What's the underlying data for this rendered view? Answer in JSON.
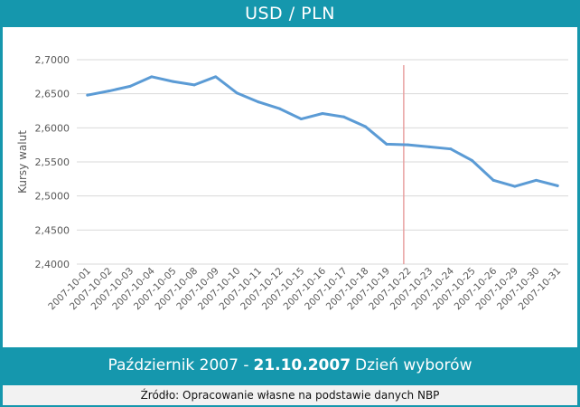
{
  "header": {
    "title": "USD / PLN"
  },
  "footer": {
    "caption_prefix": "Październik 2007 -",
    "caption_date": "21.10.2007",
    "caption_suffix": "Dzień wyborów",
    "source": "Źródło: Opracowanie własne na podstawie danych NBP"
  },
  "colors": {
    "frame": "#1597ad",
    "series": "#5b9bd5",
    "marker_line": "#e8a1a1",
    "grid": "#d9d9d9",
    "axis_text": "#595959"
  },
  "chart_data": {
    "type": "line",
    "title": "",
    "xlabel": "",
    "ylabel": "Kursy walut",
    "ylim": [
      2.4,
      2.7
    ],
    "yticks": [
      "2,4000",
      "2,4500",
      "2,5000",
      "2,5500",
      "2,6000",
      "2,6500",
      "2,7000"
    ],
    "grid": true,
    "legend": "none",
    "categories": [
      "2007-10-01",
      "2007-10-02",
      "2007-10-03",
      "2007-10-04",
      "2007-10-05",
      "2007-10-08",
      "2007-10-09",
      "2007-10-10",
      "2007-10-11",
      "2007-10-12",
      "2007-10-15",
      "2007-10-16",
      "2007-10-17",
      "2007-10-18",
      "2007-10-19",
      "2007-10-22",
      "2007-10-23",
      "2007-10-24",
      "2007-10-25",
      "2007-10-26",
      "2007-10-29",
      "2007-10-30",
      "2007-10-31"
    ],
    "series": [
      {
        "values": [
          2.648,
          2.654,
          2.661,
          2.675,
          2.668,
          2.663,
          2.675,
          2.651,
          2.638,
          2.628,
          2.613,
          2.621,
          2.616,
          2.602,
          2.576,
          2.575,
          2.572,
          2.569,
          2.552,
          2.523,
          2.514,
          2.523,
          2.515
        ]
      }
    ],
    "event_marker": {
      "between": [
        "2007-10-19",
        "2007-10-22"
      ],
      "label": "21.10.2007"
    }
  }
}
